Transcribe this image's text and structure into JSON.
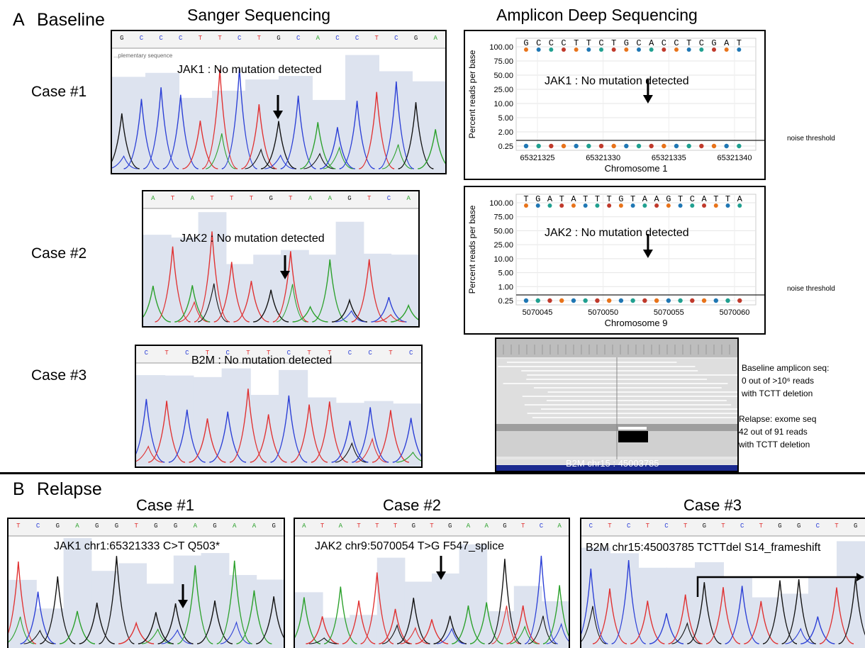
{
  "section_a": {
    "letter": "A",
    "title": "Baseline"
  },
  "section_b": {
    "letter": "B",
    "title": "Relapse"
  },
  "col_headers": {
    "sanger": "Sanger Sequencing",
    "amplicon": "Amplicon Deep  Sequencing"
  },
  "cases": [
    "Case #1",
    "Case #2",
    "Case #3"
  ],
  "baseline_sanger": [
    {
      "bases": [
        "G",
        "C",
        "C",
        "C",
        "T",
        "T",
        "C",
        "T",
        "G",
        "C",
        "A",
        "C",
        "C",
        "T",
        "C",
        "G",
        "A"
      ],
      "note": "JAK1 : No mutation detected",
      "sublabel": "...plementary sequence"
    },
    {
      "bases": [
        "A",
        "T",
        "A",
        "T",
        "T",
        "T",
        "G",
        "T",
        "A",
        "A",
        "G",
        "T",
        "C",
        "A"
      ],
      "note": "JAK2 : No mutation detected"
    },
    {
      "bases": [
        "C",
        "T",
        "C",
        "T",
        "C",
        "T",
        "T",
        "C",
        "T",
        "T",
        "C",
        "C",
        "T",
        "C"
      ],
      "note": "B2M : No mutation detected"
    }
  ],
  "amplicon": [
    {
      "bases": [
        "G",
        "C",
        "C",
        "C",
        "T",
        "T",
        "C",
        "T",
        "G",
        "C",
        "A",
        "C",
        "C",
        "T",
        "C",
        "G",
        "A",
        "T"
      ],
      "note": "JAK1 : No mutation detected",
      "yticks": [
        "100.00",
        "75.00",
        "50.00",
        "25.00",
        "10.00",
        "5.00",
        "2.00",
        "0.25"
      ],
      "xticks": [
        "65321325",
        "65321330",
        "65321335",
        "65321340"
      ],
      "ylabel": "Percent reads per base",
      "xlabel": "Chromosome 1",
      "threshold": "noise threshold"
    },
    {
      "bases": [
        "T",
        "G",
        "A",
        "T",
        "A",
        "T",
        "T",
        "T",
        "G",
        "T",
        "A",
        "A",
        "G",
        "T",
        "C",
        "A",
        "T",
        "T",
        "A"
      ],
      "note": "JAK2 : No mutation detected",
      "yticks": [
        "100.00",
        "75.00",
        "50.00",
        "25.00",
        "10.00",
        "5.00",
        "1.00",
        "0.25"
      ],
      "xticks": [
        "5070045",
        "5070050",
        "5070055",
        "5070060"
      ],
      "ylabel": "Percent reads per base",
      "xlabel": "Chromosome 9",
      "threshold": "noise threshold"
    }
  ],
  "igv": {
    "caption": "B2M  chr15 : 45003785",
    "baseline_note": [
      "Baseline amplicon seq:",
      "0 out of  >10⁶ reads",
      "with TCTT deletion"
    ],
    "relapse_note": [
      "Relapse:  exome seq",
      "42 out of 91 reads",
      "with TCTT deletion"
    ]
  },
  "relapse": [
    {
      "title": "Case #1",
      "bases": [
        "T",
        "C",
        "G",
        "A",
        "G",
        "G",
        "T",
        "G",
        "G",
        "A",
        "G",
        "A",
        "A",
        "G"
      ],
      "note": "JAK1  chr1:65321333  C>T  Q503*"
    },
    {
      "title": "Case #2",
      "bases": [
        "A",
        "T",
        "A",
        "T",
        "T",
        "T",
        "G",
        "T",
        "G",
        "A",
        "A",
        "G",
        "T",
        "C",
        "A"
      ],
      "note": "JAK2  chr9:5070054  T>G  F547_splice"
    },
    {
      "title": "Case #3",
      "bases": [
        "C",
        "T",
        "C",
        "T",
        "C",
        "T",
        "G",
        "T",
        "C",
        "T",
        "G",
        "G",
        "C",
        "T",
        "G"
      ],
      "note": "B2M  chr15:45003785  TCTTdel    S14_frameshift"
    }
  ],
  "colors": {
    "A": "#2aa02a",
    "C": "#2b3fd6",
    "G": "#111111",
    "T": "#e03030",
    "shade": "#dde3ef"
  }
}
